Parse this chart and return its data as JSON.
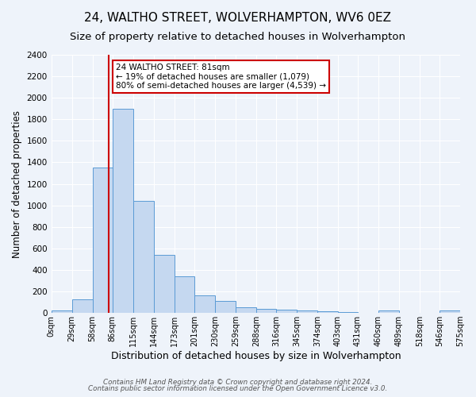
{
  "title": "24, WALTHO STREET, WOLVERHAMPTON, WV6 0EZ",
  "subtitle": "Size of property relative to detached houses in Wolverhampton",
  "xlabel": "Distribution of detached houses by size in Wolverhampton",
  "ylabel": "Number of detached properties",
  "bin_edges": [
    0,
    29,
    58,
    86,
    115,
    144,
    173,
    201,
    230,
    259,
    288,
    316,
    345,
    374,
    403,
    431,
    460,
    489,
    518,
    546,
    575
  ],
  "bin_labels": [
    "0sqm",
    "29sqm",
    "58sqm",
    "86sqm",
    "115sqm",
    "144sqm",
    "173sqm",
    "201sqm",
    "230sqm",
    "259sqm",
    "288sqm",
    "316sqm",
    "345sqm",
    "374sqm",
    "403sqm",
    "431sqm",
    "460sqm",
    "489sqm",
    "518sqm",
    "546sqm",
    "575sqm"
  ],
  "bar_heights": [
    20,
    130,
    1350,
    1900,
    1040,
    540,
    340,
    160,
    110,
    55,
    40,
    30,
    20,
    15,
    10,
    0,
    20,
    0,
    0,
    20
  ],
  "bar_color": "#c5d8f0",
  "bar_edge_color": "#5b9bd5",
  "property_size": 81,
  "property_line_color": "#cc0000",
  "ylim": [
    0,
    2400
  ],
  "annotation_text": "24 WALTHO STREET: 81sqm\n← 19% of detached houses are smaller (1,079)\n80% of semi-detached houses are larger (4,539) →",
  "annotation_box_color": "#ffffff",
  "annotation_box_edge": "#cc0000",
  "footnote1": "Contains HM Land Registry data © Crown copyright and database right 2024.",
  "footnote2": "Contains public sector information licensed under the Open Government Licence v3.0.",
  "bg_color": "#eef3fa",
  "grid_color": "#ffffff",
  "title_fontsize": 11,
  "subtitle_fontsize": 9.5,
  "tick_fontsize": 7,
  "ylabel_fontsize": 8.5,
  "xlabel_fontsize": 9
}
